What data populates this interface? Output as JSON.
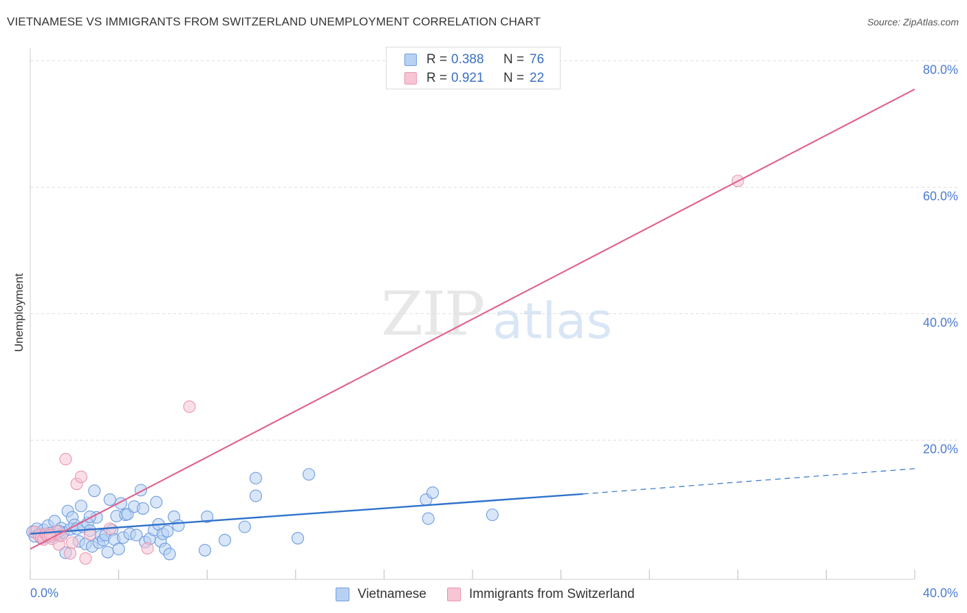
{
  "header": {
    "title": "VIETNAMESE VS IMMIGRANTS FROM SWITZERLAND UNEMPLOYMENT CORRELATION CHART",
    "source": "Source: ZipAtlas.com"
  },
  "watermark": {
    "part1": "ZIP",
    "part2": "atlas"
  },
  "legend_top": {
    "r_label": "R =",
    "n_label": "N =",
    "rows": [
      {
        "series": "Vietnamese",
        "r": "0.388",
        "n": "76"
      },
      {
        "series": "Immigrants from Switzerland",
        "r": "0.921",
        "n": "22"
      }
    ]
  },
  "legend_bottom": {
    "items": [
      "Vietnamese",
      "Immigrants from Switzerland"
    ]
  },
  "colors": {
    "blue_fill": "#b8d1f3",
    "blue_stroke": "#6d9be0",
    "blue_line": "#2f72cc",
    "pink_fill": "#f7c5d4",
    "pink_stroke": "#e895b0",
    "pink_line": "#e0638e",
    "tick_label": "#4a7bd0",
    "grid": "#dddddd"
  },
  "chart_data": {
    "type": "scatter",
    "title": "VIETNAMESE VS IMMIGRANTS FROM SWITZERLAND UNEMPLOYMENT CORRELATION CHART",
    "xlabel": "",
    "ylabel": "Unemployment",
    "xlim": [
      0,
      40
    ],
    "ylim": [
      -2,
      82
    ],
    "x_tick_labels": [
      {
        "value": 0,
        "label": "0.0%"
      },
      {
        "value": 40,
        "label": "40.0%"
      }
    ],
    "y_tick_labels": [
      {
        "value": 20,
        "label": "20.0%"
      },
      {
        "value": 40,
        "label": "40.0%"
      },
      {
        "value": 60,
        "label": "60.0%"
      },
      {
        "value": 80,
        "label": "80.0%"
      }
    ],
    "x_minor_ticks": [
      0,
      4,
      8,
      12,
      16,
      20,
      24,
      28,
      32,
      36,
      40
    ],
    "series": [
      {
        "name": "Vietnamese",
        "r": 0.388,
        "n": 76,
        "trend": {
          "x0": 0,
          "y0": 5.2,
          "x1": 25,
          "y1": 11.5,
          "dashed_to": 40,
          "dashed_y": 15.5
        },
        "points": [
          [
            0.1,
            5.5
          ],
          [
            0.2,
            4.8
          ],
          [
            0.3,
            6.0
          ],
          [
            0.4,
            5.2
          ],
          [
            0.5,
            4.5
          ],
          [
            0.6,
            5.8
          ],
          [
            0.7,
            5.0
          ],
          [
            0.8,
            6.5
          ],
          [
            0.9,
            5.3
          ],
          [
            1.0,
            4.7
          ],
          [
            1.1,
            7.2
          ],
          [
            1.2,
            5.1
          ],
          [
            1.3,
            4.9
          ],
          [
            1.4,
            6.1
          ],
          [
            1.5,
            5.4
          ],
          [
            1.6,
            2.2
          ],
          [
            1.7,
            8.8
          ],
          [
            1.8,
            5.9
          ],
          [
            1.9,
            7.8
          ],
          [
            2.0,
            6.6
          ],
          [
            2.1,
            6.0
          ],
          [
            2.2,
            4.0
          ],
          [
            2.3,
            9.6
          ],
          [
            2.4,
            6.3
          ],
          [
            2.5,
            3.6
          ],
          [
            2.6,
            6.9
          ],
          [
            2.7,
            5.7
          ],
          [
            2.8,
            3.2
          ],
          [
            2.9,
            12.0
          ],
          [
            3.0,
            7.8
          ],
          [
            3.1,
            3.8
          ],
          [
            3.2,
            4.9
          ],
          [
            3.3,
            4.2
          ],
          [
            3.4,
            5.0
          ],
          [
            3.5,
            2.3
          ],
          [
            3.6,
            10.6
          ],
          [
            3.7,
            5.8
          ],
          [
            3.8,
            4.3
          ],
          [
            3.9,
            8.0
          ],
          [
            4.0,
            2.8
          ],
          [
            4.1,
            10.0
          ],
          [
            4.2,
            4.6
          ],
          [
            4.3,
            8.2
          ],
          [
            4.4,
            8.3
          ],
          [
            4.5,
            5.2
          ],
          [
            4.7,
            9.5
          ],
          [
            4.8,
            5.0
          ],
          [
            5.0,
            12.1
          ],
          [
            5.1,
            9.2
          ],
          [
            5.2,
            3.9
          ],
          [
            5.4,
            4.4
          ],
          [
            5.6,
            5.8
          ],
          [
            5.7,
            10.2
          ],
          [
            5.8,
            6.7
          ],
          [
            5.9,
            4.0
          ],
          [
            6.0,
            5.2
          ],
          [
            6.1,
            2.8
          ],
          [
            6.2,
            5.6
          ],
          [
            6.3,
            2.0
          ],
          [
            6.5,
            7.9
          ],
          [
            6.7,
            6.5
          ],
          [
            7.9,
            2.6
          ],
          [
            8.0,
            7.9
          ],
          [
            8.8,
            4.2
          ],
          [
            9.7,
            6.3
          ],
          [
            10.2,
            11.2
          ],
          [
            10.2,
            14.0
          ],
          [
            12.1,
            4.5
          ],
          [
            12.6,
            14.6
          ],
          [
            17.9,
            10.6
          ],
          [
            18.0,
            7.6
          ],
          [
            18.2,
            11.7
          ],
          [
            20.9,
            8.2
          ],
          [
            0.6,
            4.6
          ],
          [
            1.3,
            5.6
          ],
          [
            2.7,
            7.9
          ]
        ]
      },
      {
        "name": "Immigrants from Switzerland",
        "r": 0.921,
        "n": 22,
        "trend": {
          "x0": 0,
          "y0": 2.8,
          "x1": 40,
          "y1": 75.5
        },
        "points": [
          [
            0.2,
            5.5
          ],
          [
            0.4,
            4.9
          ],
          [
            0.5,
            4.6
          ],
          [
            0.6,
            4.3
          ],
          [
            0.7,
            5.2
          ],
          [
            0.8,
            4.8
          ],
          [
            1.0,
            4.4
          ],
          [
            1.2,
            5.6
          ],
          [
            1.3,
            3.5
          ],
          [
            1.4,
            4.9
          ],
          [
            1.6,
            17.0
          ],
          [
            1.8,
            2.1
          ],
          [
            1.9,
            3.8
          ],
          [
            2.1,
            13.1
          ],
          [
            2.3,
            14.2
          ],
          [
            2.5,
            1.3
          ],
          [
            2.7,
            5.1
          ],
          [
            3.6,
            6.0
          ],
          [
            5.3,
            2.9
          ],
          [
            7.2,
            25.3
          ],
          [
            32.0,
            61.0
          ],
          [
            0.9,
            5.0
          ]
        ]
      }
    ]
  }
}
